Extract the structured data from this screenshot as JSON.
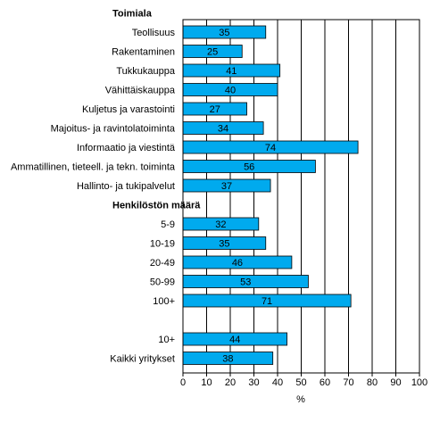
{
  "chart_data": {
    "type": "bar",
    "orientation": "horizontal",
    "xlabel": "%",
    "xlim": [
      0,
      100
    ],
    "x_ticks": [
      0,
      10,
      20,
      30,
      40,
      50,
      60,
      70,
      80,
      90,
      100
    ],
    "grid": "vertical",
    "bar_color": "#00aaee",
    "groups": [
      {
        "title": "Toimiala",
        "categories": [
          "Teollisuus",
          "Rakentaminen",
          "Tukkukauppa",
          "Vähittäiskauppa",
          "Kuljetus ja varastointi",
          "Majoitus- ja ravintolatoiminta",
          "Informaatio ja viestintä",
          "Ammatillinen, tieteell. ja tekn. toiminta",
          "Hallinto- ja tukipalvelut"
        ],
        "values": [
          35,
          25,
          41,
          40,
          27,
          34,
          74,
          56,
          37
        ]
      },
      {
        "title": "Henkilöstön määrä",
        "categories": [
          "5-9",
          "10-19",
          "20-49",
          "50-99",
          "100+"
        ],
        "values": [
          32,
          35,
          46,
          53,
          71
        ]
      },
      {
        "title": "",
        "categories": [
          "10+",
          "Kaikki yritykset"
        ],
        "values": [
          44,
          38
        ]
      }
    ]
  }
}
